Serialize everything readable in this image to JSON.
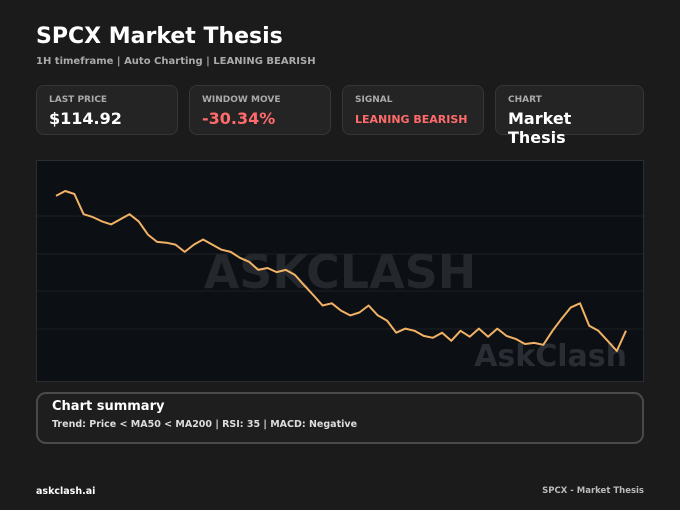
{
  "header": {
    "title": "SPCX Market Thesis",
    "subtitle": "1H timeframe | Auto Charting | LEANING BEARISH"
  },
  "cards": [
    {
      "label": "LAST PRICE",
      "value": "$114.92"
    },
    {
      "label": "WINDOW MOVE",
      "value": "-30.34%"
    },
    {
      "label": "SIGNAL",
      "value": "LEANING BEARISH"
    },
    {
      "label": "CHART",
      "value": "Market Thesis"
    }
  ],
  "chart_data": {
    "type": "line",
    "color": "#f2b266",
    "watermark": "ASKCLASH",
    "logo": "AskClash",
    "values": [
      164.97,
      166.8,
      165.7,
      158.2,
      157.1,
      155.5,
      154.4,
      156.3,
      158.2,
      155.5,
      150.6,
      147.9,
      147.6,
      146.9,
      144.2,
      146.9,
      148.8,
      146.9,
      145.0,
      144.2,
      142.0,
      140.5,
      137.5,
      138.2,
      136.7,
      137.5,
      135.6,
      131.8,
      128.1,
      124.3,
      125.1,
      122.4,
      120.6,
      121.7,
      124.3,
      120.6,
      118.7,
      114.2,
      115.7,
      114.9,
      113.0,
      112.3,
      114.2,
      111.2,
      114.9,
      112.7,
      115.7,
      112.7,
      115.7,
      113.0,
      111.9,
      110.0,
      110.4,
      109.7,
      114.9,
      119.4,
      123.6,
      125.1,
      116.8,
      114.9,
      111.2,
      107.4,
      114.92
    ]
  },
  "summary": {
    "title": "Chart summary",
    "text": "Trend: Price < MA50 < MA200 | RSI: 35 | MACD: Negative"
  },
  "footer": {
    "left": "askclash.ai",
    "right": "SPCX - Market Thesis"
  }
}
